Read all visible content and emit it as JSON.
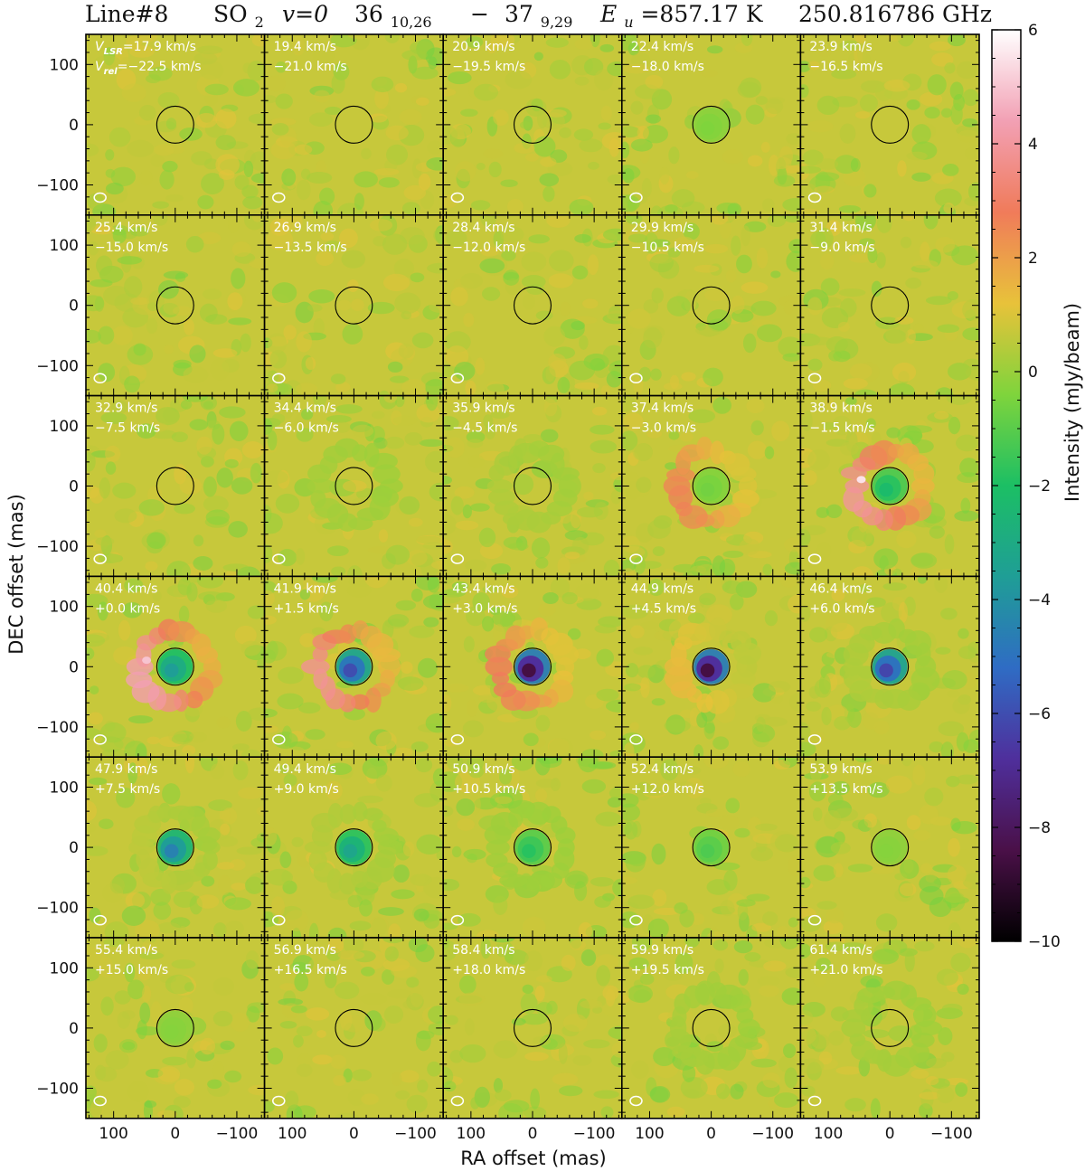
{
  "header": {
    "title_line": "Line#8",
    "title_species": "SO",
    "title_species_sub": "2",
    "title_state": "v=0",
    "title_upper": "36",
    "title_upper_sub": "10,26",
    "title_dash": "−",
    "title_lower": "37",
    "title_lower_sub": "9,29",
    "title_eu_symbol": "E",
    "title_eu_sub": "u",
    "title_eu_value": "=857.17 K",
    "title_freq": "250.816786 GHz"
  },
  "chart_data": {
    "type": "heatmap",
    "xlabel": "RA offset (mas)",
    "ylabel": "DEC offset (mas)",
    "xlim": [
      145,
      -145
    ],
    "ylim": [
      -150,
      150
    ],
    "xticks": [
      100,
      0,
      -100
    ],
    "xtick_labels": [
      "100",
      "0",
      "−100"
    ],
    "yticks": [
      100,
      0,
      -100
    ],
    "ytick_labels": [
      "100",
      "0",
      "−100"
    ],
    "colorbar": {
      "label": "Intensity (mJy/beam)",
      "range": [
        -10,
        6
      ],
      "ticks": [
        6,
        4,
        2,
        0,
        -2,
        -4,
        -6,
        -8,
        -10
      ],
      "tick_labels": [
        "6",
        "4",
        "2",
        "0",
        "−2",
        "−4",
        "−6",
        "−8",
        "−10"
      ],
      "colormap": [
        "#000000",
        "#4a1048",
        "#4f2f9c",
        "#2f6cc4",
        "#1f9e96",
        "#1cbf64",
        "#7fd43c",
        "#e8c23a",
        "#f07b5a",
        "#f2a0b4",
        "#ffffff"
      ]
    },
    "first_panel_vlsr_prefix": "V",
    "first_panel_vlsr_sub": "LSR",
    "first_panel_vrel_prefix": "V",
    "first_panel_vrel_sub": "rel",
    "panels": [
      {
        "vlsr": "17.9 km/s",
        "vrel": "−22.5 km/s",
        "emission": 0,
        "absorption": 0,
        "knot": 0
      },
      {
        "vlsr": "19.4 km/s",
        "vrel": "−21.0 km/s",
        "emission": 0,
        "absorption": 0,
        "knot": 0
      },
      {
        "vlsr": "20.9 km/s",
        "vrel": "−19.5 km/s",
        "emission": 0,
        "absorption": 0,
        "knot": 0
      },
      {
        "vlsr": "22.4 km/s",
        "vrel": "−18.0 km/s",
        "emission": 0,
        "absorption": 0.4,
        "knot": 0
      },
      {
        "vlsr": "23.9 km/s",
        "vrel": "−16.5 km/s",
        "emission": 0,
        "absorption": 0,
        "knot": 0
      },
      {
        "vlsr": "25.4 km/s",
        "vrel": "−15.0 km/s",
        "emission": 0,
        "absorption": 0,
        "knot": 0
      },
      {
        "vlsr": "26.9 km/s",
        "vrel": "−13.5 km/s",
        "emission": 0,
        "absorption": 0,
        "knot": 0
      },
      {
        "vlsr": "28.4 km/s",
        "vrel": "−12.0 km/s",
        "emission": 0,
        "absorption": 0,
        "knot": 0
      },
      {
        "vlsr": "29.9 km/s",
        "vrel": "−10.5 km/s",
        "emission": 0,
        "absorption": 0,
        "knot": 0
      },
      {
        "vlsr": "31.4 km/s",
        "vrel": "−9.0 km/s",
        "emission": 0,
        "absorption": 0,
        "knot": 0
      },
      {
        "vlsr": "32.9 km/s",
        "vrel": "−7.5 km/s",
        "emission": 0,
        "absorption": 0,
        "knot": 0
      },
      {
        "vlsr": "34.4 km/s",
        "vrel": "−6.0 km/s",
        "emission": 0.15,
        "absorption": 0,
        "knot": 0
      },
      {
        "vlsr": "35.9 km/s",
        "vrel": "−4.5 km/s",
        "emission": 0.3,
        "absorption": 0,
        "knot": 0
      },
      {
        "vlsr": "37.4 km/s",
        "vrel": "−3.0 km/s",
        "emission": 2.4,
        "absorption": 0.6,
        "knot": 0
      },
      {
        "vlsr": "38.9 km/s",
        "vrel": "−1.5 km/s",
        "emission": 3.6,
        "absorption": 2.2,
        "knot": 5.5
      },
      {
        "vlsr": "40.4 km/s",
        "vrel": "+0.0 km/s",
        "emission": 4.0,
        "absorption": 3.6,
        "knot": 5.0
      },
      {
        "vlsr": "41.9 km/s",
        "vrel": "+1.5 km/s",
        "emission": 3.5,
        "absorption": 6.0,
        "knot": 0
      },
      {
        "vlsr": "43.4 km/s",
        "vrel": "+3.0 km/s",
        "emission": 2.6,
        "absorption": 8.5,
        "knot": 0
      },
      {
        "vlsr": "44.9 km/s",
        "vrel": "+4.5 km/s",
        "emission": 1.3,
        "absorption": 8.5,
        "knot": 0
      },
      {
        "vlsr": "46.4 km/s",
        "vrel": "+6.0 km/s",
        "emission": 0.3,
        "absorption": 6.2,
        "knot": 0
      },
      {
        "vlsr": "47.9 km/s",
        "vrel": "+7.5 km/s",
        "emission": 0.5,
        "absorption": 4.5,
        "knot": 0
      },
      {
        "vlsr": "49.4 km/s",
        "vrel": "+9.0 km/s",
        "emission": 0.4,
        "absorption": 3.2,
        "knot": 0
      },
      {
        "vlsr": "50.9 km/s",
        "vrel": "+10.5 km/s",
        "emission": 0.1,
        "absorption": 1.8,
        "knot": 0
      },
      {
        "vlsr": "52.4 km/s",
        "vrel": "+12.0 km/s",
        "emission": 0,
        "absorption": 1.2,
        "knot": 0
      },
      {
        "vlsr": "53.9 km/s",
        "vrel": "+13.5 km/s",
        "emission": 0,
        "absorption": 0.3,
        "knot": 0
      },
      {
        "vlsr": "55.4 km/s",
        "vrel": "+15.0 km/s",
        "emission": 0,
        "absorption": 0.3,
        "knot": 0
      },
      {
        "vlsr": "56.9 km/s",
        "vrel": "+16.5 km/s",
        "emission": 0,
        "absorption": 0,
        "knot": 0
      },
      {
        "vlsr": "58.4 km/s",
        "vrel": "+18.0 km/s",
        "emission": 0,
        "absorption": 0,
        "knot": 0
      },
      {
        "vlsr": "59.9 km/s",
        "vrel": "+19.5 km/s",
        "emission": 0.2,
        "absorption": 0,
        "knot": 0
      },
      {
        "vlsr": "61.4 km/s",
        "vrel": "+21.0 km/s",
        "emission": 0.2,
        "absorption": 0,
        "knot": 0
      }
    ]
  }
}
